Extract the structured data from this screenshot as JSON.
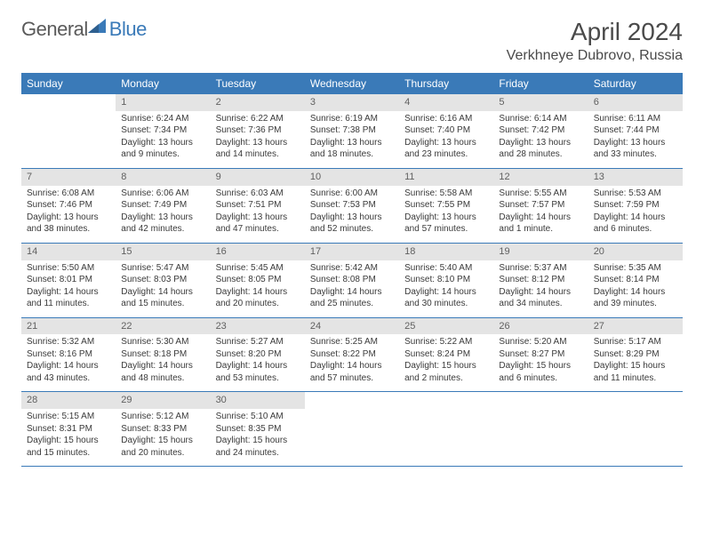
{
  "logo": {
    "part1": "General",
    "part2": "Blue",
    "color_general": "#5a5a5a",
    "color_blue": "#3a7ab8"
  },
  "header": {
    "month": "April 2024",
    "location": "Verkhneye Dubrovo, Russia"
  },
  "colors": {
    "header_bg": "#3a7ab8",
    "header_text": "#ffffff",
    "daynum_bg": "#e4e4e4",
    "daynum_text": "#606060",
    "cell_text": "#3a3a3a",
    "row_border": "#3a7ab8"
  },
  "typography": {
    "month_fontsize": 28,
    "location_fontsize": 16,
    "weekday_fontsize": 12,
    "daynum_fontsize": 11,
    "cell_fontsize": 10
  },
  "weekdays": [
    "Sunday",
    "Monday",
    "Tuesday",
    "Wednesday",
    "Thursday",
    "Friday",
    "Saturday"
  ],
  "weeks": [
    [
      {
        "day": "",
        "sunrise": "",
        "sunset": "",
        "daylight1": "",
        "daylight2": ""
      },
      {
        "day": "1",
        "sunrise": "Sunrise: 6:24 AM",
        "sunset": "Sunset: 7:34 PM",
        "daylight1": "Daylight: 13 hours",
        "daylight2": "and 9 minutes."
      },
      {
        "day": "2",
        "sunrise": "Sunrise: 6:22 AM",
        "sunset": "Sunset: 7:36 PM",
        "daylight1": "Daylight: 13 hours",
        "daylight2": "and 14 minutes."
      },
      {
        "day": "3",
        "sunrise": "Sunrise: 6:19 AM",
        "sunset": "Sunset: 7:38 PM",
        "daylight1": "Daylight: 13 hours",
        "daylight2": "and 18 minutes."
      },
      {
        "day": "4",
        "sunrise": "Sunrise: 6:16 AM",
        "sunset": "Sunset: 7:40 PM",
        "daylight1": "Daylight: 13 hours",
        "daylight2": "and 23 minutes."
      },
      {
        "day": "5",
        "sunrise": "Sunrise: 6:14 AM",
        "sunset": "Sunset: 7:42 PM",
        "daylight1": "Daylight: 13 hours",
        "daylight2": "and 28 minutes."
      },
      {
        "day": "6",
        "sunrise": "Sunrise: 6:11 AM",
        "sunset": "Sunset: 7:44 PM",
        "daylight1": "Daylight: 13 hours",
        "daylight2": "and 33 minutes."
      }
    ],
    [
      {
        "day": "7",
        "sunrise": "Sunrise: 6:08 AM",
        "sunset": "Sunset: 7:46 PM",
        "daylight1": "Daylight: 13 hours",
        "daylight2": "and 38 minutes."
      },
      {
        "day": "8",
        "sunrise": "Sunrise: 6:06 AM",
        "sunset": "Sunset: 7:49 PM",
        "daylight1": "Daylight: 13 hours",
        "daylight2": "and 42 minutes."
      },
      {
        "day": "9",
        "sunrise": "Sunrise: 6:03 AM",
        "sunset": "Sunset: 7:51 PM",
        "daylight1": "Daylight: 13 hours",
        "daylight2": "and 47 minutes."
      },
      {
        "day": "10",
        "sunrise": "Sunrise: 6:00 AM",
        "sunset": "Sunset: 7:53 PM",
        "daylight1": "Daylight: 13 hours",
        "daylight2": "and 52 minutes."
      },
      {
        "day": "11",
        "sunrise": "Sunrise: 5:58 AM",
        "sunset": "Sunset: 7:55 PM",
        "daylight1": "Daylight: 13 hours",
        "daylight2": "and 57 minutes."
      },
      {
        "day": "12",
        "sunrise": "Sunrise: 5:55 AM",
        "sunset": "Sunset: 7:57 PM",
        "daylight1": "Daylight: 14 hours",
        "daylight2": "and 1 minute."
      },
      {
        "day": "13",
        "sunrise": "Sunrise: 5:53 AM",
        "sunset": "Sunset: 7:59 PM",
        "daylight1": "Daylight: 14 hours",
        "daylight2": "and 6 minutes."
      }
    ],
    [
      {
        "day": "14",
        "sunrise": "Sunrise: 5:50 AM",
        "sunset": "Sunset: 8:01 PM",
        "daylight1": "Daylight: 14 hours",
        "daylight2": "and 11 minutes."
      },
      {
        "day": "15",
        "sunrise": "Sunrise: 5:47 AM",
        "sunset": "Sunset: 8:03 PM",
        "daylight1": "Daylight: 14 hours",
        "daylight2": "and 15 minutes."
      },
      {
        "day": "16",
        "sunrise": "Sunrise: 5:45 AM",
        "sunset": "Sunset: 8:05 PM",
        "daylight1": "Daylight: 14 hours",
        "daylight2": "and 20 minutes."
      },
      {
        "day": "17",
        "sunrise": "Sunrise: 5:42 AM",
        "sunset": "Sunset: 8:08 PM",
        "daylight1": "Daylight: 14 hours",
        "daylight2": "and 25 minutes."
      },
      {
        "day": "18",
        "sunrise": "Sunrise: 5:40 AM",
        "sunset": "Sunset: 8:10 PM",
        "daylight1": "Daylight: 14 hours",
        "daylight2": "and 30 minutes."
      },
      {
        "day": "19",
        "sunrise": "Sunrise: 5:37 AM",
        "sunset": "Sunset: 8:12 PM",
        "daylight1": "Daylight: 14 hours",
        "daylight2": "and 34 minutes."
      },
      {
        "day": "20",
        "sunrise": "Sunrise: 5:35 AM",
        "sunset": "Sunset: 8:14 PM",
        "daylight1": "Daylight: 14 hours",
        "daylight2": "and 39 minutes."
      }
    ],
    [
      {
        "day": "21",
        "sunrise": "Sunrise: 5:32 AM",
        "sunset": "Sunset: 8:16 PM",
        "daylight1": "Daylight: 14 hours",
        "daylight2": "and 43 minutes."
      },
      {
        "day": "22",
        "sunrise": "Sunrise: 5:30 AM",
        "sunset": "Sunset: 8:18 PM",
        "daylight1": "Daylight: 14 hours",
        "daylight2": "and 48 minutes."
      },
      {
        "day": "23",
        "sunrise": "Sunrise: 5:27 AM",
        "sunset": "Sunset: 8:20 PM",
        "daylight1": "Daylight: 14 hours",
        "daylight2": "and 53 minutes."
      },
      {
        "day": "24",
        "sunrise": "Sunrise: 5:25 AM",
        "sunset": "Sunset: 8:22 PM",
        "daylight1": "Daylight: 14 hours",
        "daylight2": "and 57 minutes."
      },
      {
        "day": "25",
        "sunrise": "Sunrise: 5:22 AM",
        "sunset": "Sunset: 8:24 PM",
        "daylight1": "Daylight: 15 hours",
        "daylight2": "and 2 minutes."
      },
      {
        "day": "26",
        "sunrise": "Sunrise: 5:20 AM",
        "sunset": "Sunset: 8:27 PM",
        "daylight1": "Daylight: 15 hours",
        "daylight2": "and 6 minutes."
      },
      {
        "day": "27",
        "sunrise": "Sunrise: 5:17 AM",
        "sunset": "Sunset: 8:29 PM",
        "daylight1": "Daylight: 15 hours",
        "daylight2": "and 11 minutes."
      }
    ],
    [
      {
        "day": "28",
        "sunrise": "Sunrise: 5:15 AM",
        "sunset": "Sunset: 8:31 PM",
        "daylight1": "Daylight: 15 hours",
        "daylight2": "and 15 minutes."
      },
      {
        "day": "29",
        "sunrise": "Sunrise: 5:12 AM",
        "sunset": "Sunset: 8:33 PM",
        "daylight1": "Daylight: 15 hours",
        "daylight2": "and 20 minutes."
      },
      {
        "day": "30",
        "sunrise": "Sunrise: 5:10 AM",
        "sunset": "Sunset: 8:35 PM",
        "daylight1": "Daylight: 15 hours",
        "daylight2": "and 24 minutes."
      },
      {
        "day": "",
        "sunrise": "",
        "sunset": "",
        "daylight1": "",
        "daylight2": ""
      },
      {
        "day": "",
        "sunrise": "",
        "sunset": "",
        "daylight1": "",
        "daylight2": ""
      },
      {
        "day": "",
        "sunrise": "",
        "sunset": "",
        "daylight1": "",
        "daylight2": ""
      },
      {
        "day": "",
        "sunrise": "",
        "sunset": "",
        "daylight1": "",
        "daylight2": ""
      }
    ]
  ]
}
